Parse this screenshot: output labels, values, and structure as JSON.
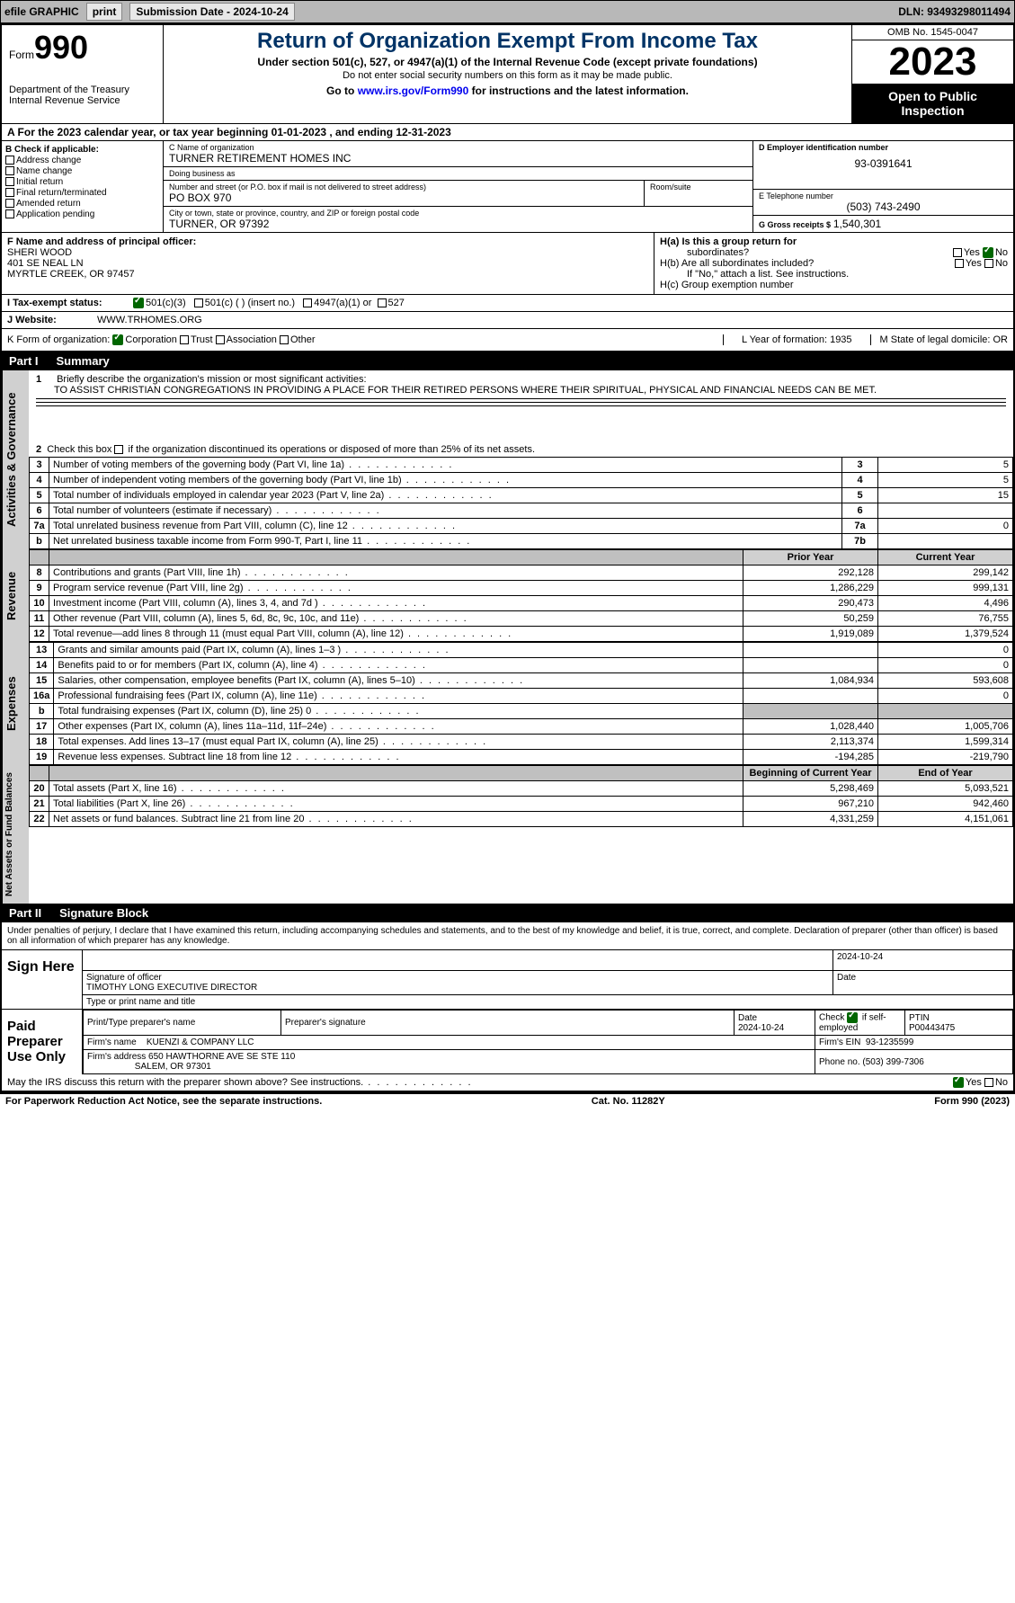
{
  "topbar": {
    "efile": "efile GRAPHIC",
    "print": "print",
    "submission": "Submission Date - 2024-10-24",
    "dln": "DLN: 93493298011494"
  },
  "header": {
    "form_word": "Form",
    "form_num": "990",
    "dept": "Department of the Treasury",
    "irs": "Internal Revenue Service",
    "title": "Return of Organization Exempt From Income Tax",
    "subtitle": "Under section 501(c), 527, or 4947(a)(1) of the Internal Revenue Code (except private foundations)",
    "note": "Do not enter social security numbers on this form as it may be made public.",
    "goto": "Go to www.irs.gov/Form990 for instructions and the latest information.",
    "goto_url": "www.irs.gov/Form990",
    "omb": "OMB No. 1545-0047",
    "year": "2023",
    "open": "Open to Public Inspection"
  },
  "row_a": "A  For the 2023 calendar year, or tax year beginning 01-01-2023   , and ending 12-31-2023",
  "section_b": {
    "label": "B Check if applicable:",
    "items": [
      "Address change",
      "Name change",
      "Initial return",
      "Final return/terminated",
      "Amended return",
      "Application pending"
    ]
  },
  "section_c": {
    "name_lbl": "C Name of organization",
    "name": "TURNER RETIREMENT HOMES INC",
    "dba_lbl": "Doing business as",
    "dba": "",
    "addr_lbl": "Number and street (or P.O. box if mail is not delivered to street address)",
    "addr": "PO BOX 970",
    "room_lbl": "Room/suite",
    "room": "",
    "city_lbl": "City or town, state or province, country, and ZIP or foreign postal code",
    "city": "TURNER, OR  97392"
  },
  "section_d": {
    "ein_lbl": "D Employer identification number",
    "ein": "93-0391641",
    "phone_lbl": "E Telephone number",
    "phone": "(503) 743-2490",
    "gross_lbl": "G Gross receipts $",
    "gross": "1,540,301"
  },
  "section_f": {
    "lbl": "F  Name and address of principal officer:",
    "name": "SHERI WOOD",
    "addr1": "401 SE NEAL LN",
    "addr2": "MYRTLE CREEK, OR  97457"
  },
  "section_h": {
    "a": "H(a)  Is this a group return for",
    "a2": "subordinates?",
    "b": "H(b)  Are all subordinates included?",
    "b2": "If \"No,\" attach a list. See instructions.",
    "c": "H(c)  Group exemption number",
    "yes": "Yes",
    "no": "No"
  },
  "row_i": {
    "lbl": "I   Tax-exempt status:",
    "o1": "501(c)(3)",
    "o2": "501(c) (  ) (insert no.)",
    "o3": "4947(a)(1) or",
    "o4": "527"
  },
  "row_j": {
    "lbl": "J   Website:",
    "val": "WWW.TRHOMES.ORG"
  },
  "row_k": {
    "lbl": "K Form of organization:",
    "o1": "Corporation",
    "o2": "Trust",
    "o3": "Association",
    "o4": "Other"
  },
  "row_lm": {
    "l": "L Year of formation: 1935",
    "m": "M State of legal domicile: OR"
  },
  "part1": {
    "label": "Part I",
    "title": "Summary"
  },
  "mission": {
    "num": "1",
    "lbl": "Briefly describe the organization's mission or most significant activities:",
    "text": "TO ASSIST CHRISTIAN CONGREGATIONS IN PROVIDING A PLACE FOR THEIR RETIRED PERSONS WHERE THEIR SPIRITUAL, PHYSICAL AND FINANCIAL NEEDS CAN BE MET."
  },
  "line2": "Check this box       if the organization discontinued its operations or disposed of more than 25% of its net assets.",
  "governance": [
    {
      "n": "3",
      "d": "Number of voting members of the governing body (Part VI, line 1a)",
      "b": "3",
      "v": "5"
    },
    {
      "n": "4",
      "d": "Number of independent voting members of the governing body (Part VI, line 1b)",
      "b": "4",
      "v": "5"
    },
    {
      "n": "5",
      "d": "Total number of individuals employed in calendar year 2023 (Part V, line 2a)",
      "b": "5",
      "v": "15"
    },
    {
      "n": "6",
      "d": "Total number of volunteers (estimate if necessary)",
      "b": "6",
      "v": ""
    },
    {
      "n": "7a",
      "d": "Total unrelated business revenue from Part VIII, column (C), line 12",
      "b": "7a",
      "v": "0"
    },
    {
      "n": "b",
      "d": "Net unrelated business taxable income from Form 990-T, Part I, line 11",
      "b": "7b",
      "v": ""
    }
  ],
  "vtabs": {
    "gov": "Activities & Governance",
    "rev": "Revenue",
    "exp": "Expenses",
    "net": "Net Assets or Fund Balances"
  },
  "cols": {
    "prior": "Prior Year",
    "current": "Current Year",
    "beg": "Beginning of Current Year",
    "end": "End of Year"
  },
  "revenue": [
    {
      "n": "8",
      "d": "Contributions and grants (Part VIII, line 1h)",
      "p": "292,128",
      "c": "299,142"
    },
    {
      "n": "9",
      "d": "Program service revenue (Part VIII, line 2g)",
      "p": "1,286,229",
      "c": "999,131"
    },
    {
      "n": "10",
      "d": "Investment income (Part VIII, column (A), lines 3, 4, and 7d )",
      "p": "290,473",
      "c": "4,496"
    },
    {
      "n": "11",
      "d": "Other revenue (Part VIII, column (A), lines 5, 6d, 8c, 9c, 10c, and 11e)",
      "p": "50,259",
      "c": "76,755"
    },
    {
      "n": "12",
      "d": "Total revenue—add lines 8 through 11 (must equal Part VIII, column (A), line 12)",
      "p": "1,919,089",
      "c": "1,379,524"
    }
  ],
  "expenses": [
    {
      "n": "13",
      "d": "Grants and similar amounts paid (Part IX, column (A), lines 1–3 )",
      "p": "",
      "c": "0"
    },
    {
      "n": "14",
      "d": "Benefits paid to or for members (Part IX, column (A), line 4)",
      "p": "",
      "c": "0"
    },
    {
      "n": "15",
      "d": "Salaries, other compensation, employee benefits (Part IX, column (A), lines 5–10)",
      "p": "1,084,934",
      "c": "593,608"
    },
    {
      "n": "16a",
      "d": "Professional fundraising fees (Part IX, column (A), line 11e)",
      "p": "",
      "c": "0"
    },
    {
      "n": "b",
      "d": "Total fundraising expenses (Part IX, column (D), line 25) 0",
      "p": "grey",
      "c": "grey"
    },
    {
      "n": "17",
      "d": "Other expenses (Part IX, column (A), lines 11a–11d, 11f–24e)",
      "p": "1,028,440",
      "c": "1,005,706"
    },
    {
      "n": "18",
      "d": "Total expenses. Add lines 13–17 (must equal Part IX, column (A), line 25)",
      "p": "2,113,374",
      "c": "1,599,314"
    },
    {
      "n": "19",
      "d": "Revenue less expenses. Subtract line 18 from line 12",
      "p": "-194,285",
      "c": "-219,790"
    }
  ],
  "netassets": [
    {
      "n": "20",
      "d": "Total assets (Part X, line 16)",
      "p": "5,298,469",
      "c": "5,093,521"
    },
    {
      "n": "21",
      "d": "Total liabilities (Part X, line 26)",
      "p": "967,210",
      "c": "942,460"
    },
    {
      "n": "22",
      "d": "Net assets or fund balances. Subtract line 21 from line 20",
      "p": "4,331,259",
      "c": "4,151,061"
    }
  ],
  "part2": {
    "label": "Part II",
    "title": "Signature Block"
  },
  "declaration": "Under penalties of perjury, I declare that I have examined this return, including accompanying schedules and statements, and to the best of my knowledge and belief, it is true, correct, and complete. Declaration of preparer (other than officer) is based on all information of which preparer has any knowledge.",
  "sign": {
    "here": "Sign Here",
    "sig_lbl": "Signature of officer",
    "name": "TIMOTHY LONG  EXECUTIVE DIRECTOR",
    "name_lbl": "Type or print name and title",
    "date": "2024-10-24",
    "date_lbl": "Date"
  },
  "paid": {
    "title": "Paid Preparer Use Only",
    "prep_lbl": "Print/Type preparer's name",
    "sig_lbl": "Preparer's signature",
    "date_lbl": "Date",
    "date": "2024-10-24",
    "check_lbl": "Check",
    "self": "if self-employed",
    "ptin_lbl": "PTIN",
    "ptin": "P00443475",
    "firm_lbl": "Firm's name",
    "firm": "KUENZI & COMPANY LLC",
    "ein_lbl": "Firm's EIN",
    "ein": "93-1235599",
    "addr_lbl": "Firm's address",
    "addr1": "650 HAWTHORNE AVE SE STE 110",
    "addr2": "SALEM, OR  97301",
    "phone_lbl": "Phone no.",
    "phone": "(503) 399-7306"
  },
  "discuss": "May the IRS discuss this return with the preparer shown above? See instructions.",
  "footer": {
    "left": "For Paperwork Reduction Act Notice, see the separate instructions.",
    "mid": "Cat. No. 11282Y",
    "right": "Form 990 (2023)"
  }
}
